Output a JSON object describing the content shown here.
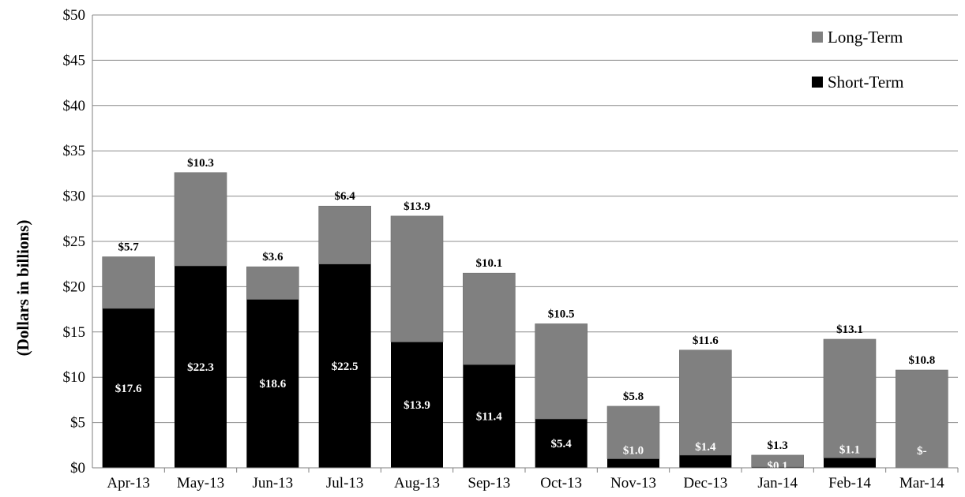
{
  "chart_data": {
    "type": "bar",
    "stacked": true,
    "categories": [
      "Apr-13",
      "May-13",
      "Jun-13",
      "Jul-13",
      "Aug-13",
      "Sep-13",
      "Oct-13",
      "Nov-13",
      "Dec-13",
      "Jan-14",
      "Feb-14",
      "Mar-14"
    ],
    "series": [
      {
        "name": "Short-Term",
        "color": "#000000",
        "values": [
          17.6,
          22.3,
          18.6,
          22.5,
          13.9,
          11.4,
          5.4,
          1.0,
          1.4,
          0.1,
          1.1,
          0
        ],
        "labels": [
          "$17.6",
          "$22.3",
          "$18.6",
          "$22.5",
          "$13.9",
          "$11.4",
          "$5.4",
          "$1.0",
          "$1.4",
          "$0.1",
          "$1.1",
          "$-"
        ]
      },
      {
        "name": "Long-Term",
        "color": "#808080",
        "values": [
          5.7,
          10.3,
          3.6,
          6.4,
          13.9,
          10.1,
          10.5,
          5.8,
          11.6,
          1.3,
          13.1,
          10.8
        ],
        "labels": [
          "$5.7",
          "$10.3",
          "$3.6",
          "$6.4",
          "$13.9",
          "$10.1",
          "$10.5",
          "$5.8",
          "$11.6",
          "$1.3",
          "$13.1",
          "$10.8"
        ]
      }
    ],
    "ylabel": "(Dollars in billions)",
    "xlabel": "",
    "ylim": [
      0,
      50
    ],
    "yticks": [
      0,
      5,
      10,
      15,
      20,
      25,
      30,
      35,
      40,
      45,
      50
    ],
    "ytick_labels": [
      "$0",
      "$5",
      "$10",
      "$15",
      "$20",
      "$25",
      "$30",
      "$35",
      "$40",
      "$45",
      "$50"
    ],
    "grid": true,
    "legend": {
      "placement": "top-right",
      "entries": [
        "Long-Term",
        "Short-Term"
      ]
    }
  }
}
